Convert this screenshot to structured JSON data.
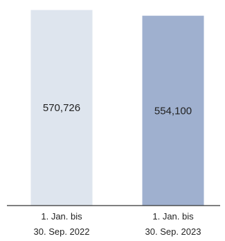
{
  "chart_data": {
    "type": "bar",
    "categories": [
      [
        "1. Jan. bis",
        "30. Sep. 2022"
      ],
      [
        "1. Jan. bis",
        "30. Sep. 2023"
      ]
    ],
    "values": [
      570726,
      554100
    ],
    "value_labels": [
      "570,726",
      "554,100"
    ],
    "colors": [
      "#dee5ee",
      "#9fb0cf"
    ],
    "axis_color": "#333333",
    "ylim": [
      0,
      600000
    ],
    "grid": false,
    "legend": "none",
    "title": "",
    "xlabel": "",
    "ylabel": ""
  }
}
